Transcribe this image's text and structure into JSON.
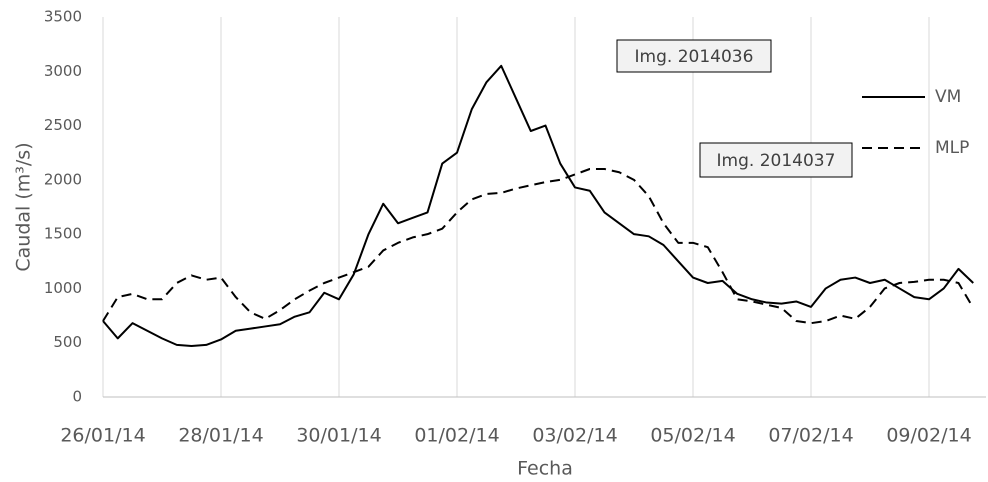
{
  "chart_data": {
    "type": "line",
    "y_label": "Caudal (m³/s)",
    "x_label": "Fecha",
    "categories": [
      "26/01/14",
      null,
      null,
      null,
      null,
      null,
      null,
      null,
      "28/01/14",
      null,
      null,
      null,
      null,
      null,
      null,
      null,
      "30/01/14",
      null,
      null,
      null,
      null,
      null,
      null,
      null,
      "01/02/14",
      null,
      null,
      null,
      null,
      null,
      null,
      null,
      "03/02/14",
      null,
      null,
      null,
      null,
      null,
      null,
      null,
      "05/02/14",
      null,
      null,
      null,
      null,
      null,
      null,
      null,
      "07/02/14",
      null,
      null,
      null,
      null,
      null,
      null,
      null,
      "09/02/14",
      null,
      null,
      null
    ],
    "series": [
      {
        "name": "VM",
        "color": "#000000",
        "dash": false,
        "values": [
          700,
          540,
          680,
          610,
          540,
          480,
          470,
          480,
          530,
          610,
          630,
          650,
          670,
          740,
          780,
          960,
          900,
          1130,
          1500,
          1780,
          1600,
          1650,
          1700,
          2150,
          2250,
          2650,
          2900,
          3050,
          2750,
          2450,
          2500,
          2150,
          1930,
          1900,
          1700,
          1600,
          1500,
          1480,
          1400,
          1250,
          1100,
          1050,
          1070,
          950,
          900,
          870,
          860,
          880,
          830,
          1000,
          1080,
          1100,
          1050,
          1080,
          1000,
          920,
          900,
          1000,
          1180,
          1050
        ]
      },
      {
        "name": "MLP",
        "color": "#000000",
        "dash": true,
        "values": [
          700,
          920,
          950,
          900,
          900,
          1050,
          1120,
          1080,
          1100,
          920,
          780,
          720,
          800,
          900,
          980,
          1050,
          1100,
          1150,
          1200,
          1350,
          1420,
          1470,
          1500,
          1550,
          1700,
          1820,
          1870,
          1880,
          1920,
          1950,
          1980,
          2000,
          2050,
          2100,
          2100,
          2070,
          2000,
          1850,
          1600,
          1420,
          1420,
          1380,
          1150,
          900,
          880,
          850,
          820,
          700,
          680,
          700,
          750,
          720,
          830,
          1000,
          1050,
          1060,
          1080,
          1080,
          1050,
          820
        ]
      }
    ],
    "annotations": [
      "Img. 2014036",
      "Img. 2014037"
    ],
    "ylim": [
      0,
      3500
    ],
    "yticks": [
      0,
      500,
      1000,
      1500,
      2000,
      2500,
      3000,
      3500
    ],
    "grid": "x",
    "legend": "right"
  }
}
